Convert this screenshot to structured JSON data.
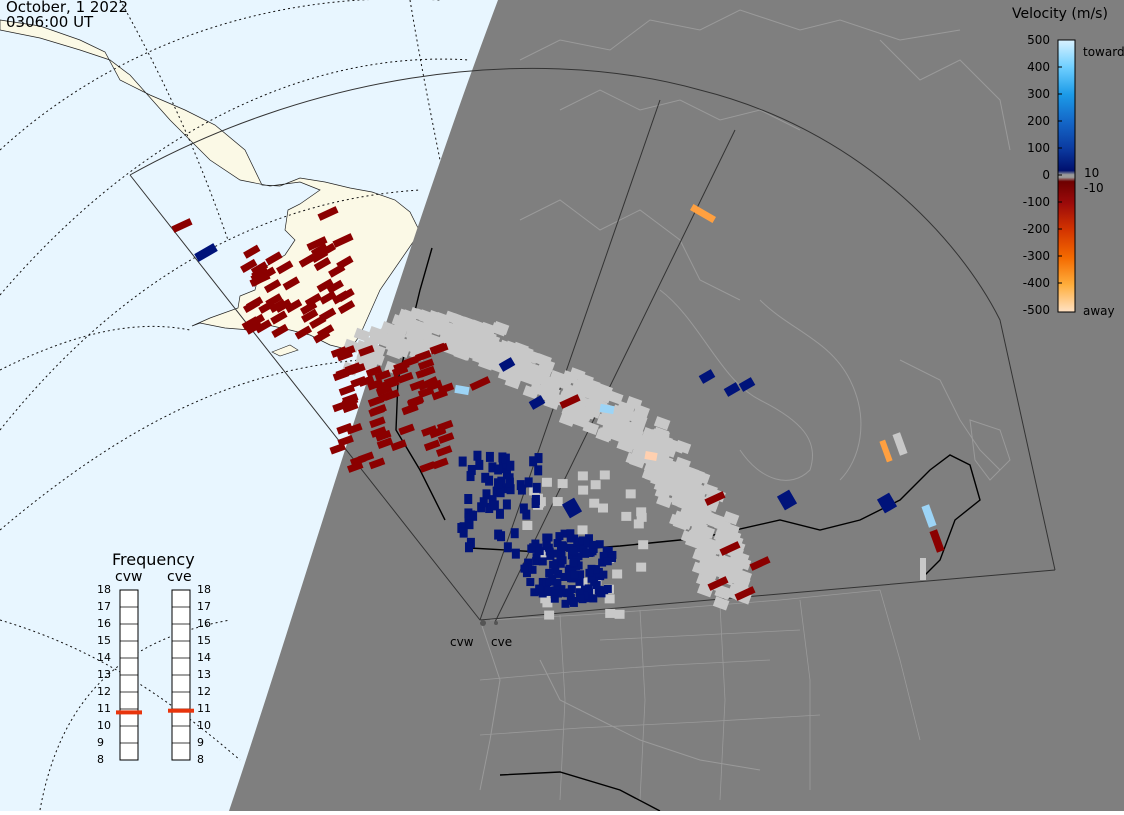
{
  "header": {
    "date": "October, 1 2022",
    "time": "0306:00 UT"
  },
  "colors": {
    "night": "#7f7f7f",
    "ocean_day": "#e8f6ff",
    "land_day": "#fbf9e6",
    "ground_scatter": "#c8c8c8",
    "coastline_night": "#9a9a9a"
  },
  "velocity_scale": {
    "title": "Velocity (m/s)",
    "toward_label": "toward",
    "away_label": "away",
    "ticks": [
      "500",
      "400",
      "300",
      "200",
      "100",
      "0",
      "-100",
      "-200",
      "-300",
      "-400",
      "-500"
    ],
    "inner_ticks": [
      "10",
      "-10"
    ]
  },
  "frequency_panel": {
    "title": "Frequency",
    "radars": [
      {
        "name": "cvw",
        "frequency_mhz": 10.8
      },
      {
        "name": "cve",
        "frequency_mhz": 10.9
      }
    ],
    "scale": [
      "18",
      "17",
      "16",
      "15",
      "14",
      "13",
      "12",
      "11",
      "10",
      "9",
      "8"
    ]
  },
  "radar_sites": [
    {
      "name": "cvw"
    },
    {
      "name": "cve"
    }
  ]
}
